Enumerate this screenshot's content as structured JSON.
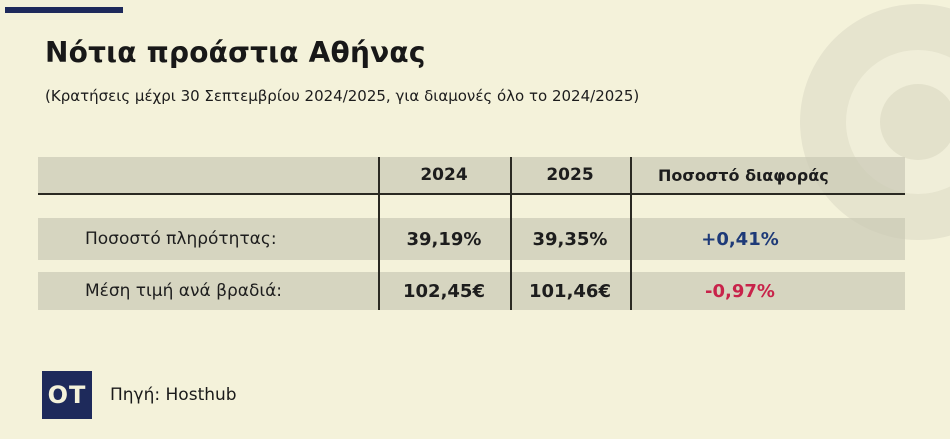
{
  "page": {
    "title": "Νότια προάστια Αθήνας",
    "subtitle": "(Κρατήσεις μέχρι 30 Σεπτεμβρίου 2024/2025, για διαμονές όλο το 2024/2025)"
  },
  "chart_data": {
    "type": "table",
    "title": "Νότια προάστια Αθήνας",
    "subtitle": "(Κρατήσεις μέχρι 30 Σεπτεμβρίου 2024/2025, για διαμονές όλο το 2024/2025)",
    "columns": [
      "",
      "2024",
      "2025",
      "Ποσοστό διαφοράς"
    ],
    "rows": [
      [
        "Ποσοστό πληρότητας:",
        "39,19%",
        "39,35%",
        "+0,41%"
      ],
      [
        "Μέση τιμή ανά βραδιά:",
        "102,45€",
        "101,46€",
        "-0,97%"
      ]
    ],
    "numeric": {
      "occupancy_2024_pct": 39.19,
      "occupancy_2025_pct": 39.35,
      "occupancy_diff_pct": 0.41,
      "avg_price_2024_eur": 102.45,
      "avg_price_2025_eur": 101.46,
      "avg_price_diff_pct": -0.97
    },
    "source": "Πηγή: Hosthub"
  },
  "footer": {
    "logo_text": "OT",
    "source_label": "Πηγή: Hosthub"
  },
  "colors": {
    "background": "#f4f2da",
    "band": "#d7d5c0",
    "accent_navy": "#1e2a5b",
    "diff_positive_blue": "#1e3a78",
    "diff_negative_red": "#c8234a",
    "text": "#1d1d1d",
    "circle_dark": "#e6e4ce",
    "circle_light": "#f0eed9"
  }
}
